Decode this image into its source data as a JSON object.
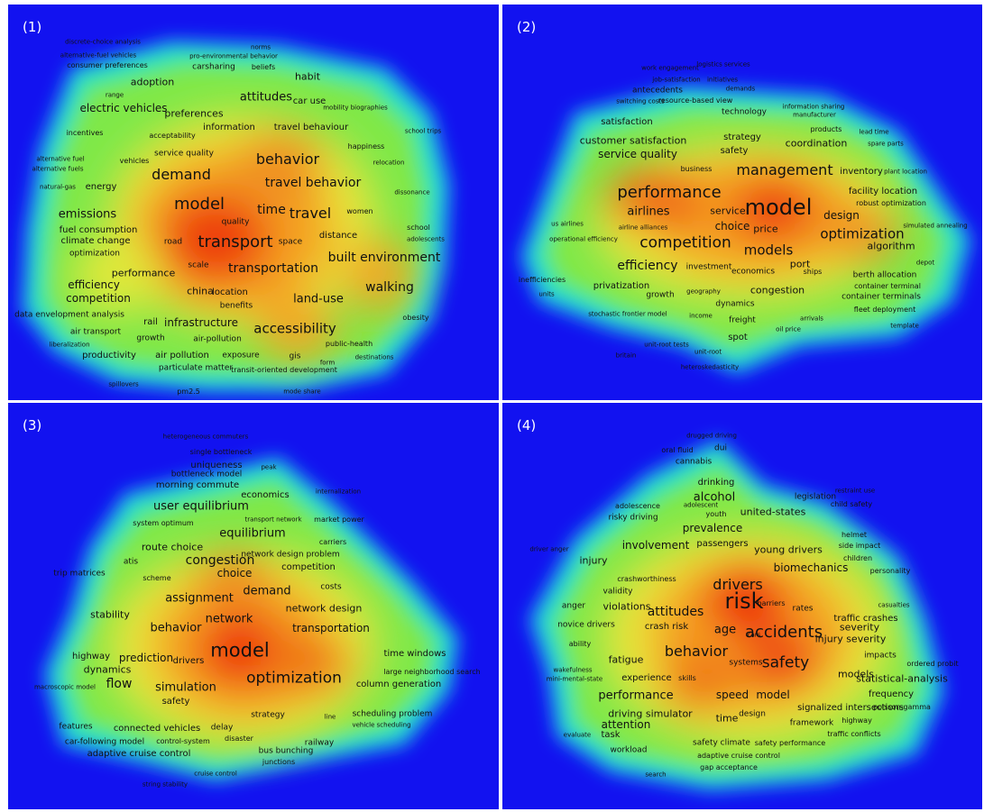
{
  "panels": [
    {
      "label": "(1)",
      "keywords": [
        "discrete-choice analysis",
        "norms",
        "alternative-fuel vehicles",
        "pro-environmental behavior",
        "consumer preferences",
        "carsharing",
        "beliefs",
        "adoption",
        "habit",
        "range",
        "attitudes",
        "car use",
        "electric vehicles",
        "preferences",
        "mobility biographies",
        "incentives",
        "acceptability",
        "information",
        "travel behaviour",
        "school trips",
        "happiness",
        "service quality",
        "behavior",
        "alternative fuel",
        "vehicles",
        "relocation",
        "alternative fuels",
        "demand",
        "travel behavior",
        "natural-gas",
        "energy",
        "model",
        "dissonance",
        "time",
        "travel",
        "women",
        "emissions",
        "quality",
        "fuel consumption",
        "school",
        "climate change",
        "road",
        "transport",
        "distance",
        "adolescents",
        "optimization",
        "space",
        "built environment",
        "performance",
        "scale",
        "transportation",
        "efficiency",
        "walking",
        "china",
        "location",
        "competition",
        "land-use",
        "benefits",
        "data envelopment analysis",
        "rail",
        "infrastructure",
        "accessibility",
        "obesity",
        "air transport",
        "growth",
        "air-pollution",
        "public-health",
        "liberalization",
        "productivity",
        "air pollution",
        "exposure",
        "gis",
        "destinations",
        "particulate matter",
        "transit-oriented development",
        "spillovers",
        "form",
        "pm2.5",
        "mode share"
      ]
    },
    {
      "label": "(2)",
      "keywords": [
        "logistics services",
        "work engagement",
        "job-satisfaction",
        "initiatives",
        "antecedents",
        "demands",
        "switching costs",
        "resource-based view",
        "technology",
        "information sharing",
        "manufacturer",
        "satisfaction",
        "products",
        "lead time",
        "customer satisfaction",
        "strategy",
        "coordination",
        "spare parts",
        "service quality",
        "safety",
        "management",
        "inventory",
        "plant location",
        "business",
        "performance",
        "model",
        "facility location",
        "robust optimization",
        "airlines",
        "service",
        "design",
        "us airlines",
        "airline alliances",
        "choice",
        "price",
        "optimization",
        "simulated annealing",
        "operational efficiency",
        "competition",
        "models",
        "algorithm",
        "efficiency",
        "investment",
        "port",
        "depot",
        "inefficiencies",
        "economics",
        "ships",
        "berth allocation",
        "privatization",
        "congestion",
        "container terminal",
        "units",
        "growth",
        "geography",
        "container terminals",
        "stochastic frontier model",
        "income",
        "dynamics",
        "fleet deployment",
        "freight",
        "arrivals",
        "template",
        "spot",
        "oil price",
        "unit-root tests",
        "unit-root",
        "britain",
        "heteroskedasticity"
      ]
    },
    {
      "label": "(3)",
      "keywords": [
        "heterogeneous commuters",
        "single bottleneck",
        "uniqueness",
        "peak",
        "bottleneck model",
        "morning commute",
        "economics",
        "user equilibrium",
        "internalization",
        "transport network",
        "market power",
        "system optimum",
        "equilibrium",
        "carriers",
        "route choice",
        "network design problem",
        "congestion",
        "competition",
        "atis",
        "choice",
        "trip matrices",
        "scheme",
        "costs",
        "assignment",
        "demand",
        "stability",
        "network design",
        "network",
        "transportation",
        "behavior",
        "prediction",
        "model",
        "time windows",
        "highway",
        "drivers",
        "large neighborhood search",
        "dynamics",
        "optimization",
        "column generation",
        "macroscopic model",
        "flow",
        "simulation",
        "safety",
        "strategy",
        "line",
        "scheduling problem",
        "features",
        "connected vehicles",
        "delay",
        "vehicle scheduling",
        "car-following model",
        "control-system",
        "disaster",
        "railway",
        "adaptive cruise control",
        "bus bunching",
        "junctions",
        "cruise control",
        "string stability"
      ]
    },
    {
      "label": "(4)",
      "keywords": [
        "drugged driving",
        "oral fluid",
        "dui",
        "cannabis",
        "drinking",
        "alcohol",
        "restraint use",
        "legislation",
        "child safety",
        "adolescence",
        "adolescent",
        "youth",
        "united-states",
        "risky driving",
        "prevalence",
        "helmet",
        "driver anger",
        "passengers",
        "side impact",
        "involvement",
        "young drivers",
        "children",
        "biomechanics",
        "injury",
        "personality",
        "crashworthiness",
        "drivers",
        "validity",
        "barriers",
        "anger",
        "violations",
        "risk",
        "rates",
        "casualties",
        "traffic crashes",
        "attitudes",
        "crash risk",
        "severity",
        "novice drivers",
        "age",
        "accidents",
        "injury severity",
        "ability",
        "cars",
        "behavior",
        "fatigue",
        "impacts",
        "ordered probit",
        "safety",
        "wakefulness",
        "systems",
        "models",
        "statistical-analysis",
        "mini-mental-state",
        "experience",
        "skills",
        "frequency",
        "performance",
        "speed",
        "model",
        "signalized intersections",
        "driving simulator",
        "time",
        "design",
        "highway",
        "poisson-gamma",
        "attention",
        "framework",
        "evaluate",
        "task",
        "traffic conflicts",
        "workload",
        "safety climate",
        "safety performance",
        "adaptive cruise control",
        "gap acceptance",
        "search"
      ]
    }
  ]
}
